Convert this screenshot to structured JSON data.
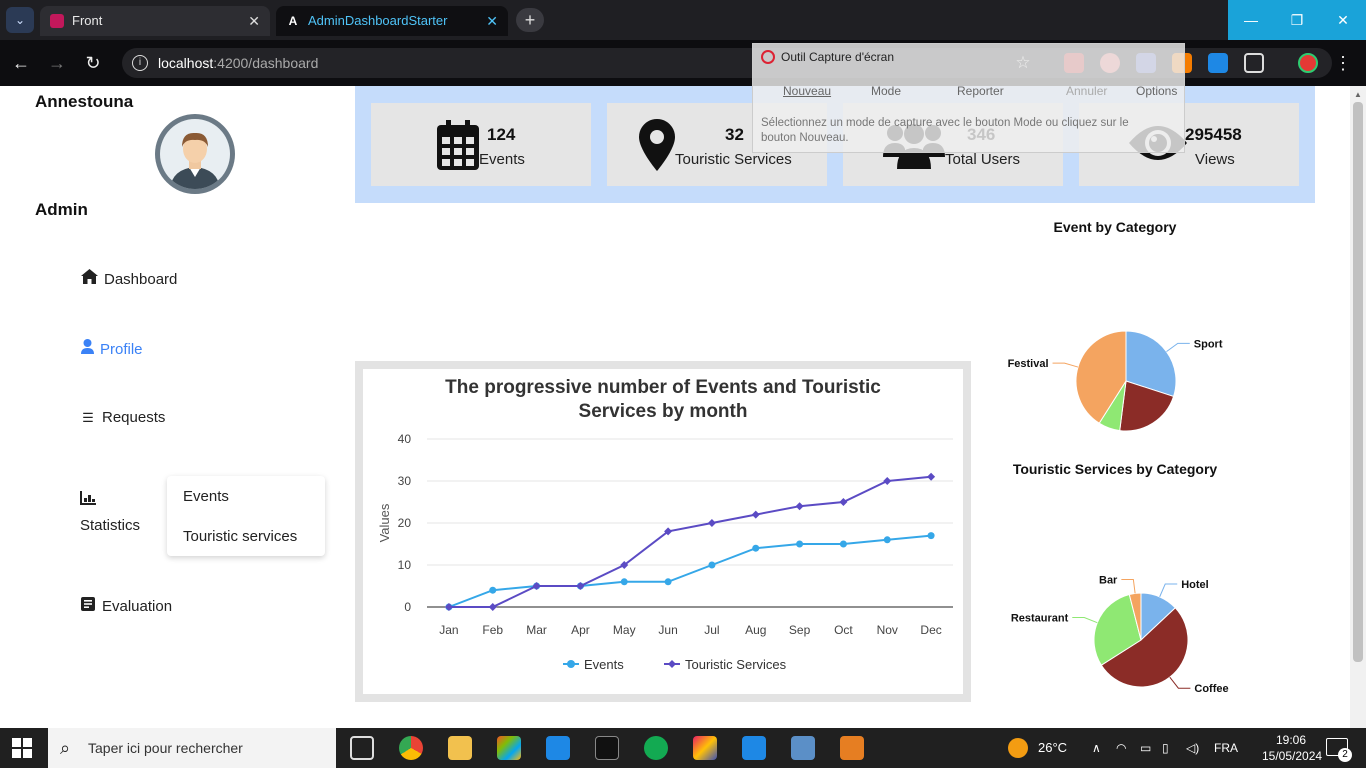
{
  "browser": {
    "tabs": [
      {
        "label": "Front"
      },
      {
        "label": "AdminDashboardStarter"
      }
    ],
    "url_host": "localhost",
    "url_path": ":4200/dashboard"
  },
  "snipping_tool": {
    "title": "Outil Capture d'écran",
    "buttons": {
      "new": "Nouveau",
      "mode": "Mode",
      "delay": "Reporter",
      "cancel": "Annuler",
      "options": "Options"
    },
    "description": "Sélectionnez un mode de capture avec le bouton Mode ou cliquez sur le bouton Nouveau."
  },
  "sidebar": {
    "brand": "Annestouna",
    "role": "Admin",
    "items": [
      {
        "label": "Dashboard",
        "icon": "home-icon"
      },
      {
        "label": "Profile",
        "icon": "person-icon"
      },
      {
        "label": "Requests",
        "icon": "list-check-icon"
      },
      {
        "label": "Statistics",
        "icon": "bar-chart-icon"
      },
      {
        "label": "Evaluation",
        "icon": "form-icon"
      }
    ],
    "submenu": [
      {
        "label": "Events"
      },
      {
        "label": "Touristic services"
      }
    ],
    "colors": {
      "active": "#3b82f6"
    }
  },
  "stats": [
    {
      "value": "124",
      "label": "Events",
      "icon": "calendar-icon"
    },
    {
      "value": "32",
      "label": "Touristic Services",
      "icon": "location-pin-icon"
    },
    {
      "value": "346",
      "label": "Total Users",
      "icon": "users-icon"
    },
    {
      "value": "295458",
      "label": "Views",
      "icon": "eye-icon"
    }
  ],
  "chart_data": [
    {
      "type": "line",
      "title_lines": [
        "The progressive number of Events and Touristic",
        "Services by month"
      ],
      "ylabel": "Values",
      "ylim": [
        0,
        40
      ],
      "yticks": [
        0,
        10,
        20,
        30,
        40
      ],
      "categories": [
        "Jan",
        "Feb",
        "Mar",
        "Apr",
        "May",
        "Jun",
        "Jul",
        "Aug",
        "Sep",
        "Oct",
        "Nov",
        "Dec"
      ],
      "series": [
        {
          "name": "Events",
          "color": "#35a7e8",
          "marker": "circle",
          "values": [
            0,
            4,
            5,
            5,
            6,
            6,
            10,
            14,
            15,
            15,
            16,
            17
          ]
        },
        {
          "name": "Touristic Services",
          "color": "#5b4bc4",
          "marker": "diamond",
          "values": [
            0,
            0,
            5,
            5,
            10,
            18,
            20,
            22,
            24,
            25,
            30,
            31
          ]
        }
      ],
      "legend": "bottom",
      "grid": true
    },
    {
      "type": "pie",
      "title": "Event by Category",
      "slices": [
        {
          "label": "Sport",
          "value": 30,
          "color": "#7ab3ec"
        },
        {
          "label": "",
          "value": 22,
          "color": "#8b2c27"
        },
        {
          "label": "",
          "value": 7,
          "color": "#8fe873"
        },
        {
          "label": "Festival",
          "value": 41,
          "color": "#f4a460"
        }
      ]
    },
    {
      "type": "pie",
      "title": "Touristic Services by Category",
      "slices": [
        {
          "label": "Hotel",
          "value": 13,
          "color": "#7ab3ec"
        },
        {
          "label": "Coffee",
          "value": 53,
          "color": "#8b2c27"
        },
        {
          "label": "Restaurant",
          "value": 30,
          "color": "#8fe873"
        },
        {
          "label": "Bar",
          "value": 4,
          "color": "#f4a460"
        }
      ]
    }
  ],
  "taskbar": {
    "search_placeholder": "Taper ici pour rechercher",
    "weather": "26°C",
    "language": "FRA",
    "time": "19:06",
    "date": "15/05/2024",
    "notifications": "2"
  }
}
